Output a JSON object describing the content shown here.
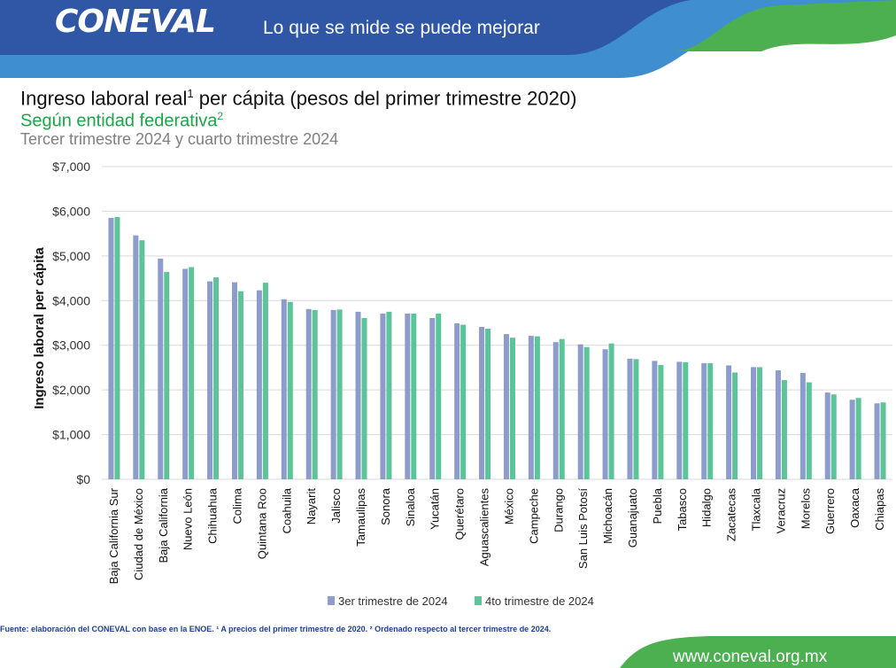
{
  "header": {
    "logo_text": "CONEVAL",
    "slogan": "Lo que se mide se puede mejorar",
    "colors": {
      "blue": "#2f57a6",
      "light_blue": "#3f8fd0",
      "green": "#4caf50"
    }
  },
  "footer": {
    "footnote": "Fuente: elaboración del CONEVAL con base en la ENOE. ¹ A precios del primer trimestre de 2020. ² Ordenado respecto al tercer trimestre de 2024.",
    "url": "www.coneval.org.mx"
  },
  "chart_data": {
    "type": "bar",
    "title": "Ingreso laboral real ¹ per cápita (pesos del primer trimestre 2020)",
    "subtitle": "Según entidad federativa²",
    "subtitle2": "Tercer trimestre 2024 y cuarto trimestre 2024",
    "title_main": "Ingreso laboral real",
    "title_sup": "1",
    "title_rest": "per cápita (pesos del primer trimestre 2020)",
    "subtitle_main": "Según entidad federativa",
    "subtitle_sup": "2",
    "ylabel": "Ingreso laboral per cápita",
    "xlabel": "",
    "ylim": [
      0,
      7000
    ],
    "yticks": [
      0,
      1000,
      2000,
      3000,
      4000,
      5000,
      6000,
      7000
    ],
    "ytick_labels": [
      "$0",
      "$1,000",
      "$2,000",
      "$3,000",
      "$4,000",
      "$5,000",
      "$6,000",
      "$7,000"
    ],
    "grid": true,
    "legend_position": "bottom",
    "categories": [
      "Baja California Sur",
      "Ciudad de México",
      "Baja California",
      "Nuevo León",
      "Chihuahua",
      "Colima",
      "Quintana Roo",
      "Coahuila",
      "Nayarit",
      "Jalisco",
      "Tamaulipas",
      "Sonora",
      "Sinaloa",
      "Yucatán",
      "Querétaro",
      "Aguascalientes",
      "México",
      "Campeche",
      "Durango",
      "San Luis Potosí",
      "Michoacán",
      "Guanajuato",
      "Puebla",
      "Tabasco",
      "Hidalgo",
      "Zacatecas",
      "Tlaxcala",
      "Veracruz",
      "Morelos",
      "Guerrero",
      "Oaxaca",
      "Chiapas"
    ],
    "series": [
      {
        "name": "3er trimestre de 2024",
        "color": "#8e9ccc",
        "values": [
          5850,
          5460,
          4940,
          4710,
          4430,
          4410,
          4230,
          4030,
          3810,
          3790,
          3750,
          3710,
          3710,
          3610,
          3490,
          3410,
          3250,
          3210,
          3070,
          3020,
          2910,
          2700,
          2650,
          2630,
          2600,
          2550,
          2510,
          2440,
          2380,
          1940,
          1780,
          1700
        ]
      },
      {
        "name": "4to trimestre de 2024",
        "color": "#5dc49a",
        "values": [
          5870,
          5350,
          4640,
          4750,
          4520,
          4210,
          4400,
          3970,
          3790,
          3800,
          3610,
          3750,
          3710,
          3710,
          3460,
          3370,
          3170,
          3200,
          3140,
          2960,
          3040,
          2690,
          2560,
          2620,
          2600,
          2390,
          2510,
          2220,
          2170,
          1900,
          1820,
          1720
        ]
      }
    ]
  }
}
